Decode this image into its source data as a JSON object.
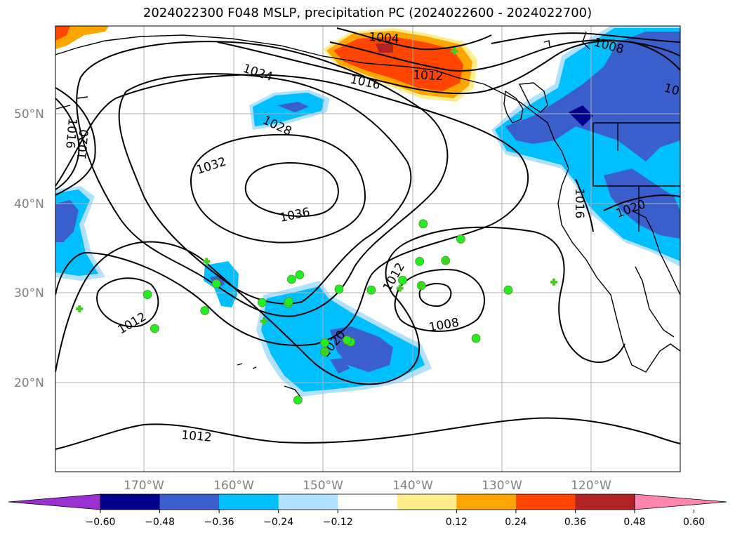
{
  "title": "2024022300 F048 MSLP, precipitation PC (2024022600 - 2024022700)",
  "lon_ticks": [
    "170°W",
    "160°W",
    "150°W",
    "140°W",
    "130°W",
    "120°W"
  ],
  "lat_ticks": [
    "50°N",
    "40°N",
    "30°N",
    "20°N"
  ],
  "isobar_labels": [
    "1004",
    "1008",
    "1012",
    "1012",
    "1012",
    "1012",
    "1016",
    "1016",
    "1016",
    "1020",
    "1020",
    "1020",
    "1024",
    "1028",
    "1032",
    "1036",
    "1008",
    "10"
  ],
  "colorbar": {
    "ticks": [
      "−0.60",
      "−0.48",
      "−0.36",
      "−0.24",
      "−0.12",
      "0.12",
      "0.24",
      "0.36",
      "0.48",
      "0.60"
    ],
    "colors": [
      "#9b30d0",
      "#00008b",
      "#3a5fcd",
      "#00bfff",
      "#b0e2ff",
      "#ffffff",
      "#ffec8b",
      "#ffa500",
      "#ff4500",
      "#b22222",
      "#ff85b0"
    ]
  },
  "colors": {
    "land_outline": "#000000",
    "grid": "#b0b0b0",
    "station_dot": "#22ee22",
    "station_cross": "#44cc22"
  },
  "stations": {
    "dots": [
      [
        -169.6,
        29.8
      ],
      [
        -168.8,
        26.0
      ],
      [
        -163.2,
        28.0
      ],
      [
        -161.9,
        31.0
      ],
      [
        -156.8,
        28.9
      ],
      [
        -153.5,
        31.5
      ],
      [
        -152.6,
        32.0
      ],
      [
        -153.9,
        28.8
      ],
      [
        -148.2,
        30.4
      ],
      [
        -144.6,
        30.3
      ],
      [
        -141.1,
        31.4
      ],
      [
        -139.2,
        33.5
      ],
      [
        -138.8,
        37.7
      ],
      [
        -134.6,
        36.0
      ],
      [
        -129.3,
        30.3
      ],
      [
        -132.9,
        24.9
      ],
      [
        -146.9,
        24.5
      ],
      [
        -147.3,
        24.7
      ],
      [
        -149.8,
        24.4
      ],
      [
        -149.8,
        23.4
      ],
      [
        -152.8,
        18.0
      ],
      [
        -139.0,
        30.8
      ],
      [
        -136.3,
        33.6
      ],
      [
        -153.8,
        29.0
      ]
    ],
    "crosses": [
      [
        -177.2,
        28.2
      ],
      [
        -163.0,
        33.5
      ],
      [
        -156.6,
        26.8
      ],
      [
        -149.8,
        23.4
      ],
      [
        -141.4,
        30.5
      ],
      [
        -139.1,
        30.8
      ],
      [
        -136.2,
        33.5
      ],
      [
        -124.2,
        31.2
      ],
      [
        -135.3,
        57.0
      ]
    ]
  }
}
